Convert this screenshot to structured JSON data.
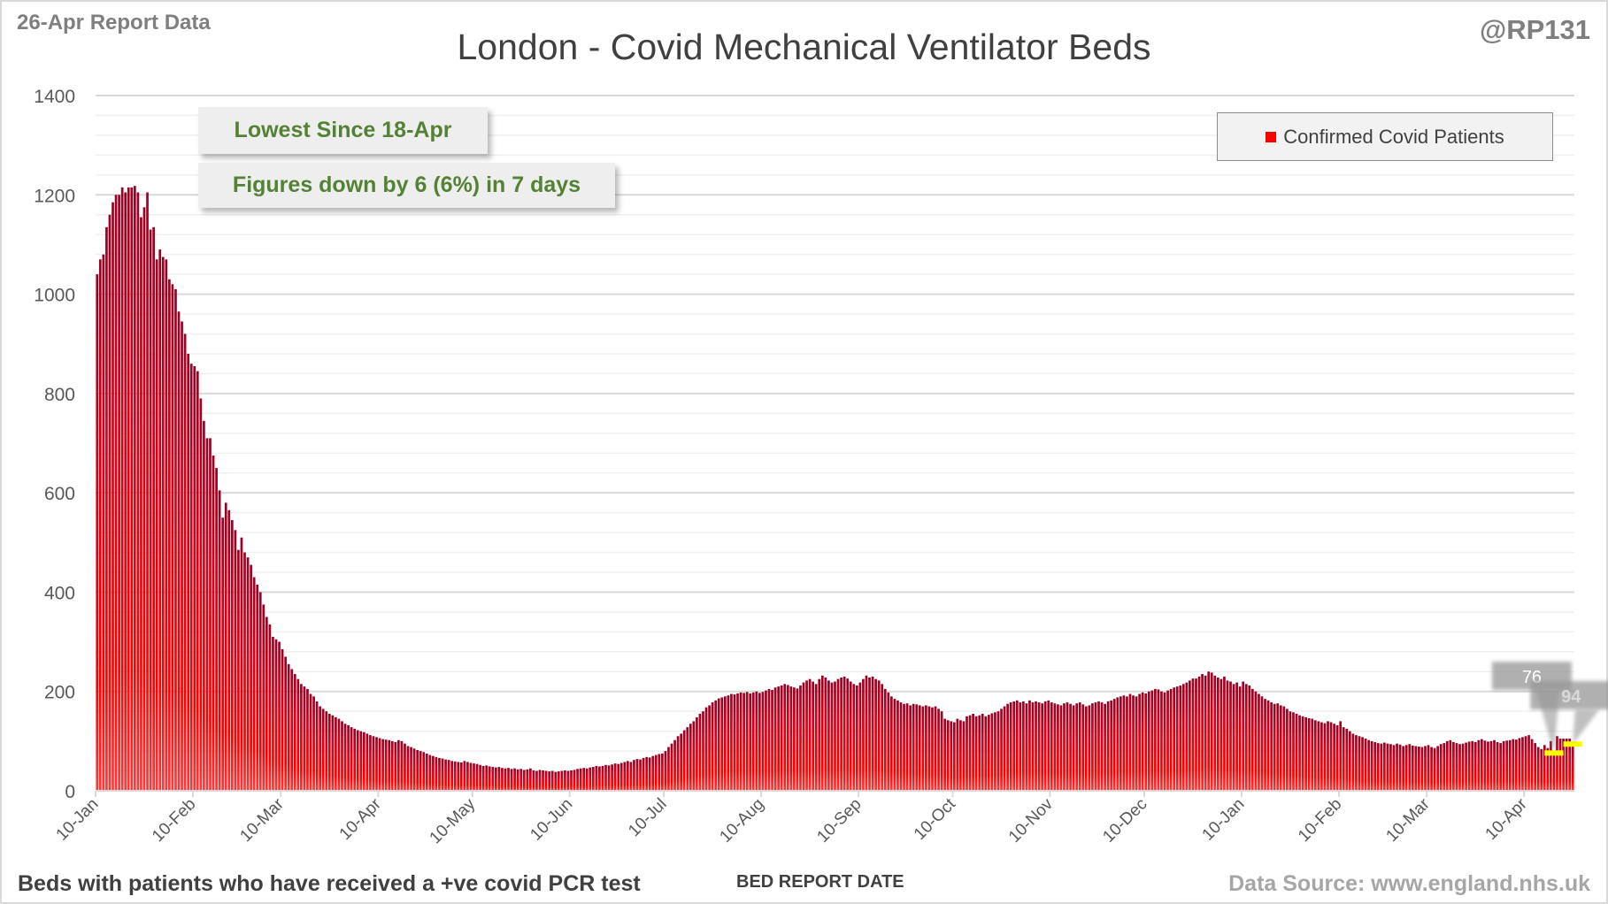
{
  "header": {
    "report_label": "26-Apr Report Data",
    "handle": "@RP131"
  },
  "annotations": {
    "lowest": "Lowest Since 18-Apr",
    "change": "Figures down by 6 (6%) in 7 days"
  },
  "footer": {
    "left": "Beds with patients who have received a +ve covid PCR test",
    "source": "Data Source: www.england.nhs.uk"
  },
  "chart_data": {
    "type": "bar",
    "title": "London - Covid Mechanical Ventilator Beds",
    "xlabel": "BED REPORT DATE",
    "ylabel": "",
    "ylim": [
      0,
      1400
    ],
    "yticks": [
      0,
      200,
      400,
      600,
      800,
      1000,
      1200,
      1400
    ],
    "minor_grid_step": 40,
    "grid": true,
    "legend": {
      "position": "top-right",
      "entries": [
        "Confirmed Covid Patients"
      ]
    },
    "series_color": "#ff0000",
    "x_start_date": "10-Jan-2021",
    "x_tick_labels": [
      {
        "label": "10-Jan",
        "day": 0
      },
      {
        "label": "10-Feb",
        "day": 31
      },
      {
        "label": "10-Mar",
        "day": 59
      },
      {
        "label": "10-Apr",
        "day": 90
      },
      {
        "label": "10-May",
        "day": 120
      },
      {
        "label": "10-Jun",
        "day": 151
      },
      {
        "label": "10-Jul",
        "day": 181
      },
      {
        "label": "10-Aug",
        "day": 212
      },
      {
        "label": "10-Sep",
        "day": 243
      },
      {
        "label": "10-Oct",
        "day": 273
      },
      {
        "label": "10-Nov",
        "day": 304
      },
      {
        "label": "10-Dec",
        "day": 334
      },
      {
        "label": "10-Jan",
        "day": 365
      },
      {
        "label": "10-Feb",
        "day": 396
      },
      {
        "label": "10-Mar",
        "day": 424
      },
      {
        "label": "10-Apr",
        "day": 455
      }
    ],
    "callouts": [
      {
        "label": "76",
        "day": 464,
        "value": 76
      },
      {
        "label": "94",
        "day": 470,
        "value": 94
      }
    ],
    "values": [
      1040,
      1070,
      1080,
      1135,
      1160,
      1185,
      1200,
      1200,
      1215,
      1205,
      1215,
      1215,
      1218,
      1205,
      1155,
      1175,
      1205,
      1130,
      1135,
      1070,
      1090,
      1075,
      1070,
      1030,
      1020,
      1010,
      965,
      945,
      920,
      880,
      860,
      855,
      845,
      790,
      745,
      710,
      710,
      675,
      650,
      605,
      550,
      580,
      565,
      545,
      525,
      485,
      510,
      480,
      470,
      455,
      430,
      415,
      400,
      375,
      350,
      335,
      310,
      305,
      300,
      285,
      270,
      255,
      245,
      235,
      225,
      215,
      210,
      205,
      195,
      190,
      180,
      170,
      165,
      160,
      155,
      152,
      148,
      145,
      140,
      135,
      132,
      128,
      125,
      122,
      120,
      118,
      115,
      112,
      110,
      108,
      106,
      104,
      103,
      102,
      100,
      98,
      102,
      100,
      95,
      90,
      88,
      85,
      82,
      80,
      78,
      75,
      72,
      70,
      68,
      66,
      65,
      63,
      62,
      60,
      59,
      58,
      57,
      60,
      58,
      56,
      55,
      54,
      52,
      50,
      51,
      49,
      48,
      47,
      48,
      46,
      45,
      46,
      44,
      45,
      43,
      44,
      42,
      43,
      45,
      41,
      40,
      42,
      41,
      40,
      39,
      40,
      38,
      39,
      40,
      41,
      40,
      41,
      42,
      44,
      45,
      46,
      45,
      47,
      48,
      50,
      49,
      50,
      52,
      51,
      53,
      55,
      54,
      56,
      58,
      60,
      58,
      62,
      64,
      63,
      66,
      68,
      67,
      70,
      72,
      74,
      75,
      80,
      88,
      95,
      102,
      110,
      115,
      122,
      128,
      135,
      140,
      148,
      155,
      160,
      168,
      172,
      178,
      182,
      186,
      188,
      190,
      192,
      195,
      194,
      196,
      198,
      197,
      199,
      196,
      198,
      200,
      197,
      199,
      202,
      205,
      203,
      208,
      210,
      212,
      215,
      213,
      210,
      208,
      206,
      212,
      218,
      222,
      225,
      220,
      215,
      225,
      232,
      228,
      222,
      218,
      220,
      225,
      228,
      230,
      226,
      220,
      215,
      212,
      218,
      225,
      232,
      228,
      230,
      225,
      222,
      215,
      205,
      198,
      190,
      185,
      182,
      178,
      175,
      176,
      172,
      175,
      174,
      172,
      170,
      172,
      170,
      168,
      170,
      165,
      160,
      145,
      142,
      140,
      138,
      145,
      142,
      140,
      150,
      152,
      155,
      150,
      152,
      155,
      150,
      153,
      156,
      158,
      160,
      165,
      170,
      175,
      178,
      180,
      182,
      178,
      180,
      176,
      182,
      178,
      180,
      178,
      176,
      180,
      182,
      178,
      176,
      174,
      172,
      176,
      178,
      175,
      172,
      176,
      178,
      174,
      170,
      172,
      176,
      178,
      180,
      178,
      175,
      180,
      182,
      185,
      188,
      190,
      192,
      190,
      195,
      192,
      190,
      195,
      198,
      196,
      200,
      202,
      205,
      204,
      200,
      198,
      202,
      205,
      208,
      210,
      212,
      215,
      218,
      222,
      226,
      226,
      230,
      235,
      232,
      240,
      238,
      232,
      228,
      225,
      230,
      222,
      220,
      215,
      218,
      210,
      220,
      215,
      212,
      205,
      200,
      195,
      190,
      185,
      182,
      178,
      175,
      176,
      172,
      170,
      165,
      160,
      158,
      155,
      152,
      150,
      148,
      146,
      145,
      142,
      140,
      138,
      136,
      140,
      138,
      135,
      132,
      140,
      128,
      125,
      120,
      115,
      112,
      110,
      108,
      105,
      102,
      100,
      98,
      96,
      95,
      97,
      95,
      94,
      92,
      95,
      93,
      90,
      92,
      94,
      91,
      90,
      89,
      88,
      90,
      92,
      88,
      86,
      90,
      94,
      96,
      100,
      102,
      98,
      96,
      94,
      95,
      97,
      99,
      100,
      98,
      102,
      104,
      101,
      99,
      100,
      102,
      98,
      96,
      100,
      101,
      102,
      104,
      103,
      106,
      108,
      110,
      112,
      104,
      96,
      88,
      84,
      92,
      86,
      100,
      76,
      110,
      105,
      105,
      105,
      105,
      94
    ]
  }
}
